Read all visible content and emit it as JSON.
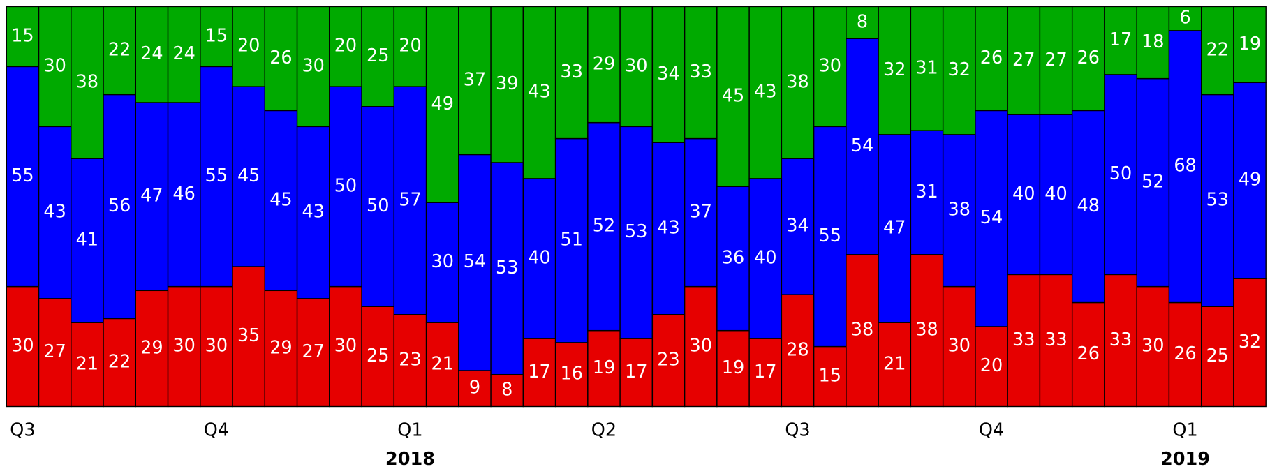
{
  "chart_data": {
    "type": "stacked-bar",
    "categories": [
      "Q3",
      null,
      null,
      null,
      null,
      null,
      "Q4",
      null,
      null,
      null,
      null,
      null,
      "Q1",
      null,
      null,
      null,
      null,
      null,
      "Q2",
      null,
      null,
      null,
      null,
      null,
      "Q3",
      null,
      null,
      null,
      null,
      null,
      "Q4",
      null,
      null,
      null,
      null,
      null,
      "Q1",
      null,
      null
    ],
    "years": [
      null,
      null,
      null,
      null,
      null,
      null,
      null,
      null,
      null,
      null,
      null,
      null,
      "2018",
      null,
      null,
      null,
      null,
      null,
      null,
      null,
      null,
      null,
      null,
      null,
      null,
      null,
      null,
      null,
      null,
      null,
      null,
      null,
      null,
      null,
      null,
      null,
      "2019",
      null,
      null
    ],
    "series": [
      {
        "color": "#e60000",
        "values": [
          30,
          27,
          21,
          22,
          29,
          30,
          30,
          35,
          29,
          27,
          30,
          25,
          23,
          21,
          9,
          8,
          17,
          16,
          19,
          17,
          23,
          30,
          19,
          17,
          28,
          15,
          38,
          21,
          38,
          30,
          20,
          33,
          33,
          26,
          33,
          30,
          26,
          25,
          32
        ]
      },
      {
        "color": "#0000ff",
        "values": [
          55,
          43,
          41,
          56,
          47,
          46,
          55,
          45,
          45,
          43,
          50,
          50,
          57,
          30,
          54,
          53,
          40,
          51,
          52,
          53,
          43,
          37,
          36,
          40,
          34,
          55,
          54,
          47,
          31,
          38,
          54,
          40,
          40,
          48,
          50,
          52,
          68,
          53,
          49
        ]
      },
      {
        "color": "#00aa00",
        "values": [
          15,
          30,
          38,
          22,
          24,
          24,
          15,
          20,
          26,
          30,
          20,
          25,
          20,
          49,
          37,
          39,
          43,
          33,
          29,
          30,
          34,
          33,
          45,
          43,
          38,
          30,
          8,
          32,
          31,
          32,
          26,
          27,
          27,
          26,
          17,
          18,
          6,
          22,
          19
        ]
      }
    ],
    "ylim": [
      0,
      100
    ]
  }
}
